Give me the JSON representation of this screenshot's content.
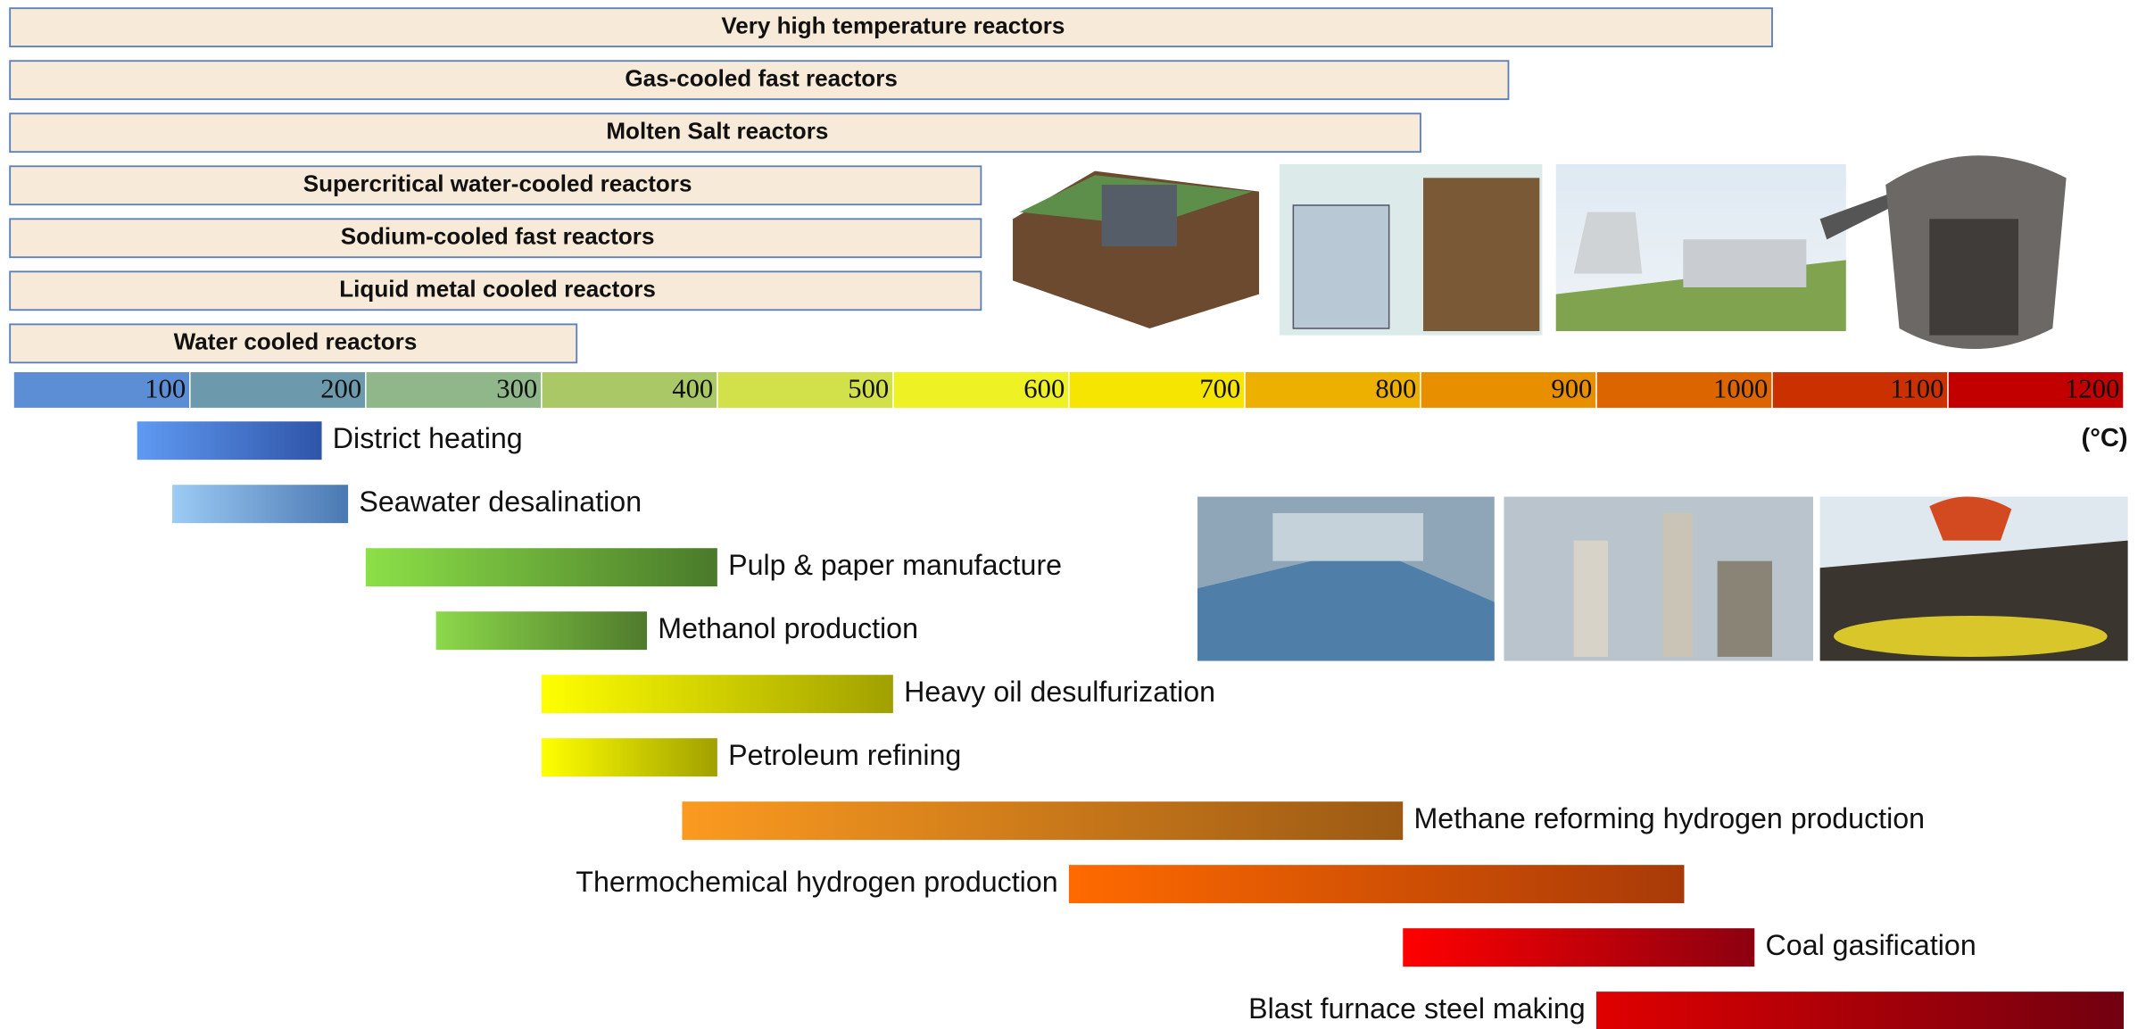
{
  "chart_data": {
    "type": "range-bar",
    "x_label": "(°C)",
    "xlim": [
      0,
      1200
    ],
    "xticks": [
      100,
      200,
      300,
      400,
      500,
      600,
      700,
      800,
      900,
      1000,
      1100,
      1200
    ],
    "band_colors": [
      "#5b8ed4",
      "#6c9aac",
      "#8fb78a",
      "#aac866",
      "#d2e04a",
      "#eef124",
      "#f6e500",
      "#eeb000",
      "#e88f00",
      "#dd6500",
      "#ca3000",
      "#c20000"
    ],
    "reactor_color": "#f7ead8",
    "reactor_border": "#5b7fb8",
    "reactors": [
      {
        "name": "Very high temperature reactors",
        "range": [
          0,
          1000
        ]
      },
      {
        "name": "Gas-cooled fast reactors",
        "range": [
          0,
          850
        ]
      },
      {
        "name": "Molten Salt reactors",
        "range": [
          0,
          800
        ]
      },
      {
        "name": "Supercritical water-cooled reactors",
        "range": [
          0,
          550
        ]
      },
      {
        "name": "Sodium-cooled fast reactors",
        "range": [
          0,
          550
        ]
      },
      {
        "name": "Liquid metal cooled reactors",
        "range": [
          0,
          550
        ]
      },
      {
        "name": "Water cooled reactors",
        "range": [
          0,
          320
        ]
      }
    ],
    "applications": [
      {
        "name": "District heating",
        "range": [
          70,
          175
        ],
        "colors": [
          "#5f9af2",
          "#2f55a8"
        ]
      },
      {
        "name": "Seawater desalination",
        "range": [
          90,
          190
        ],
        "colors": [
          "#9ccbf5",
          "#4a78b2"
        ]
      },
      {
        "name": "Pulp & paper manufacture",
        "range": [
          200,
          400
        ],
        "colors": [
          "#8ce048",
          "#4a7a2a"
        ]
      },
      {
        "name": "Methanol production",
        "range": [
          240,
          360
        ],
        "colors": [
          "#8cd84a",
          "#4f7a2c"
        ]
      },
      {
        "name": "Heavy oil desulfurization",
        "range": [
          300,
          500
        ],
        "colors": [
          "#ffff00",
          "#a0a000"
        ]
      },
      {
        "name": "Petroleum refining",
        "range": [
          300,
          400
        ],
        "colors": [
          "#ffff00",
          "#a0a000"
        ]
      },
      {
        "name": "Methane reforming hydrogen production",
        "range": [
          380,
          790
        ],
        "colors": [
          "#fb9a20",
          "#9c5a14"
        ]
      },
      {
        "name": "Thermochemical hydrogen production",
        "range": [
          600,
          950
        ],
        "colors": [
          "#ff6a00",
          "#a83a08"
        ]
      },
      {
        "name": "Coal gasification",
        "range": [
          790,
          990
        ],
        "colors": [
          "#ff0000",
          "#8c0010"
        ]
      },
      {
        "name": "Blast furnace steel making",
        "range": [
          900,
          1200
        ],
        "colors": [
          "#e00000",
          "#700010"
        ]
      }
    ]
  }
}
